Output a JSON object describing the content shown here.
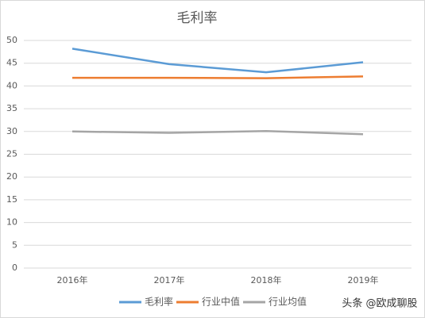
{
  "chart_data": {
    "type": "line",
    "title": "毛利率",
    "categories": [
      "2016年",
      "2017年",
      "2018年",
      "2019年"
    ],
    "series": [
      {
        "name": "毛利率",
        "color": "#5b9bd5",
        "values": [
          48.2,
          44.8,
          43.0,
          45.2
        ]
      },
      {
        "name": "行业中值",
        "color": "#ed7d31",
        "values": [
          41.8,
          41.8,
          41.7,
          42.1
        ]
      },
      {
        "name": "行业均值",
        "color": "#a5a5a5",
        "values": [
          30.0,
          29.7,
          30.1,
          29.4
        ]
      }
    ],
    "ylim": [
      0,
      50
    ],
    "yticks": [
      0,
      5,
      10,
      15,
      20,
      25,
      30,
      35,
      40,
      45,
      50
    ],
    "grid": true,
    "legend": "bottom",
    "annotation": "头条 @欧成聊股"
  }
}
